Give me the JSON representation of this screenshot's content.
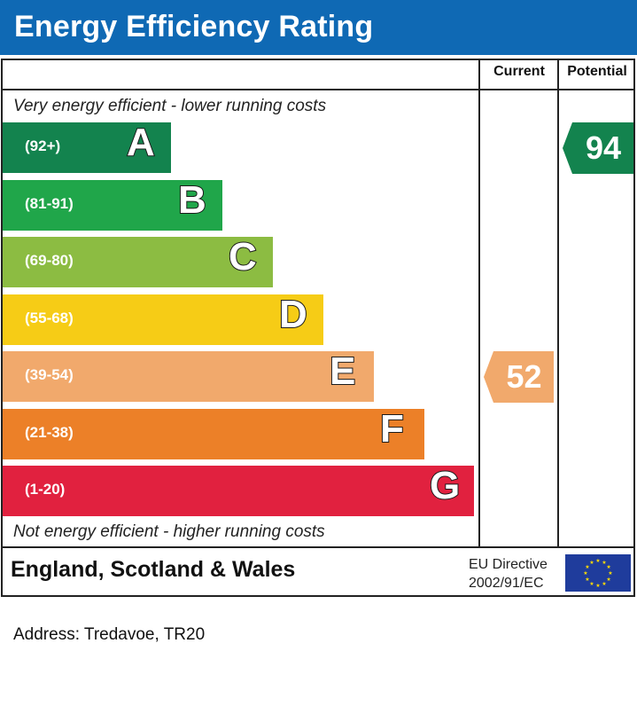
{
  "title": "Energy Efficiency Rating",
  "columns": {
    "current": "Current",
    "potential": "Potential"
  },
  "captions": {
    "top": "Very energy efficient - lower running costs",
    "bottom": "Not energy efficient - higher running costs"
  },
  "footer": {
    "region": "England, Scotland & Wales",
    "eu_line1": "EU Directive",
    "eu_line2": "2002/91/EC"
  },
  "address": "Address: Tredavoe, TR20",
  "chart_data": {
    "type": "bar",
    "categories": [
      "A",
      "B",
      "C",
      "D",
      "E",
      "F",
      "G"
    ],
    "ranges": [
      "(92+)",
      "(81-91)",
      "(69-80)",
      "(55-68)",
      "(39-54)",
      "(21-38)",
      "(1-20)"
    ],
    "colors": [
      "#13834e",
      "#20a64a",
      "#8cbc42",
      "#f6cc16",
      "#f1a96c",
      "#ec8028",
      "#e1213f"
    ],
    "current": {
      "value": 52,
      "band": "E",
      "color": "#f1a96c"
    },
    "potential": {
      "value": 94,
      "band": "A",
      "color": "#13834e"
    }
  }
}
